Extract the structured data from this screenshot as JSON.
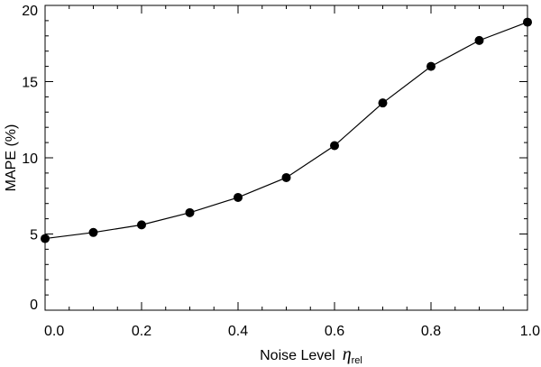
{
  "chart_data": {
    "type": "line",
    "xlabel_text": "Noise Level",
    "xlabel_symbol": "η",
    "xlabel_subscript": "rel",
    "ylabel": "MAPE (%)",
    "xlim": [
      0.0,
      1.0
    ],
    "ylim": [
      0,
      20
    ],
    "xticks": [
      "0.0",
      "0.2",
      "0.4",
      "0.6",
      "0.8",
      "1.0"
    ],
    "yticks": [
      "0",
      "5",
      "10",
      "15",
      "20"
    ],
    "grid": false,
    "series": [
      {
        "x": [
          0.0,
          0.1,
          0.2,
          0.3,
          0.4,
          0.5,
          0.6,
          0.7,
          0.8,
          0.9,
          1.0
        ],
        "values": [
          4.7,
          5.1,
          5.6,
          6.4,
          7.4,
          8.7,
          10.8,
          13.6,
          16.0,
          17.7,
          18.9
        ],
        "color": "#000000",
        "marker": "filled-circle"
      }
    ]
  }
}
